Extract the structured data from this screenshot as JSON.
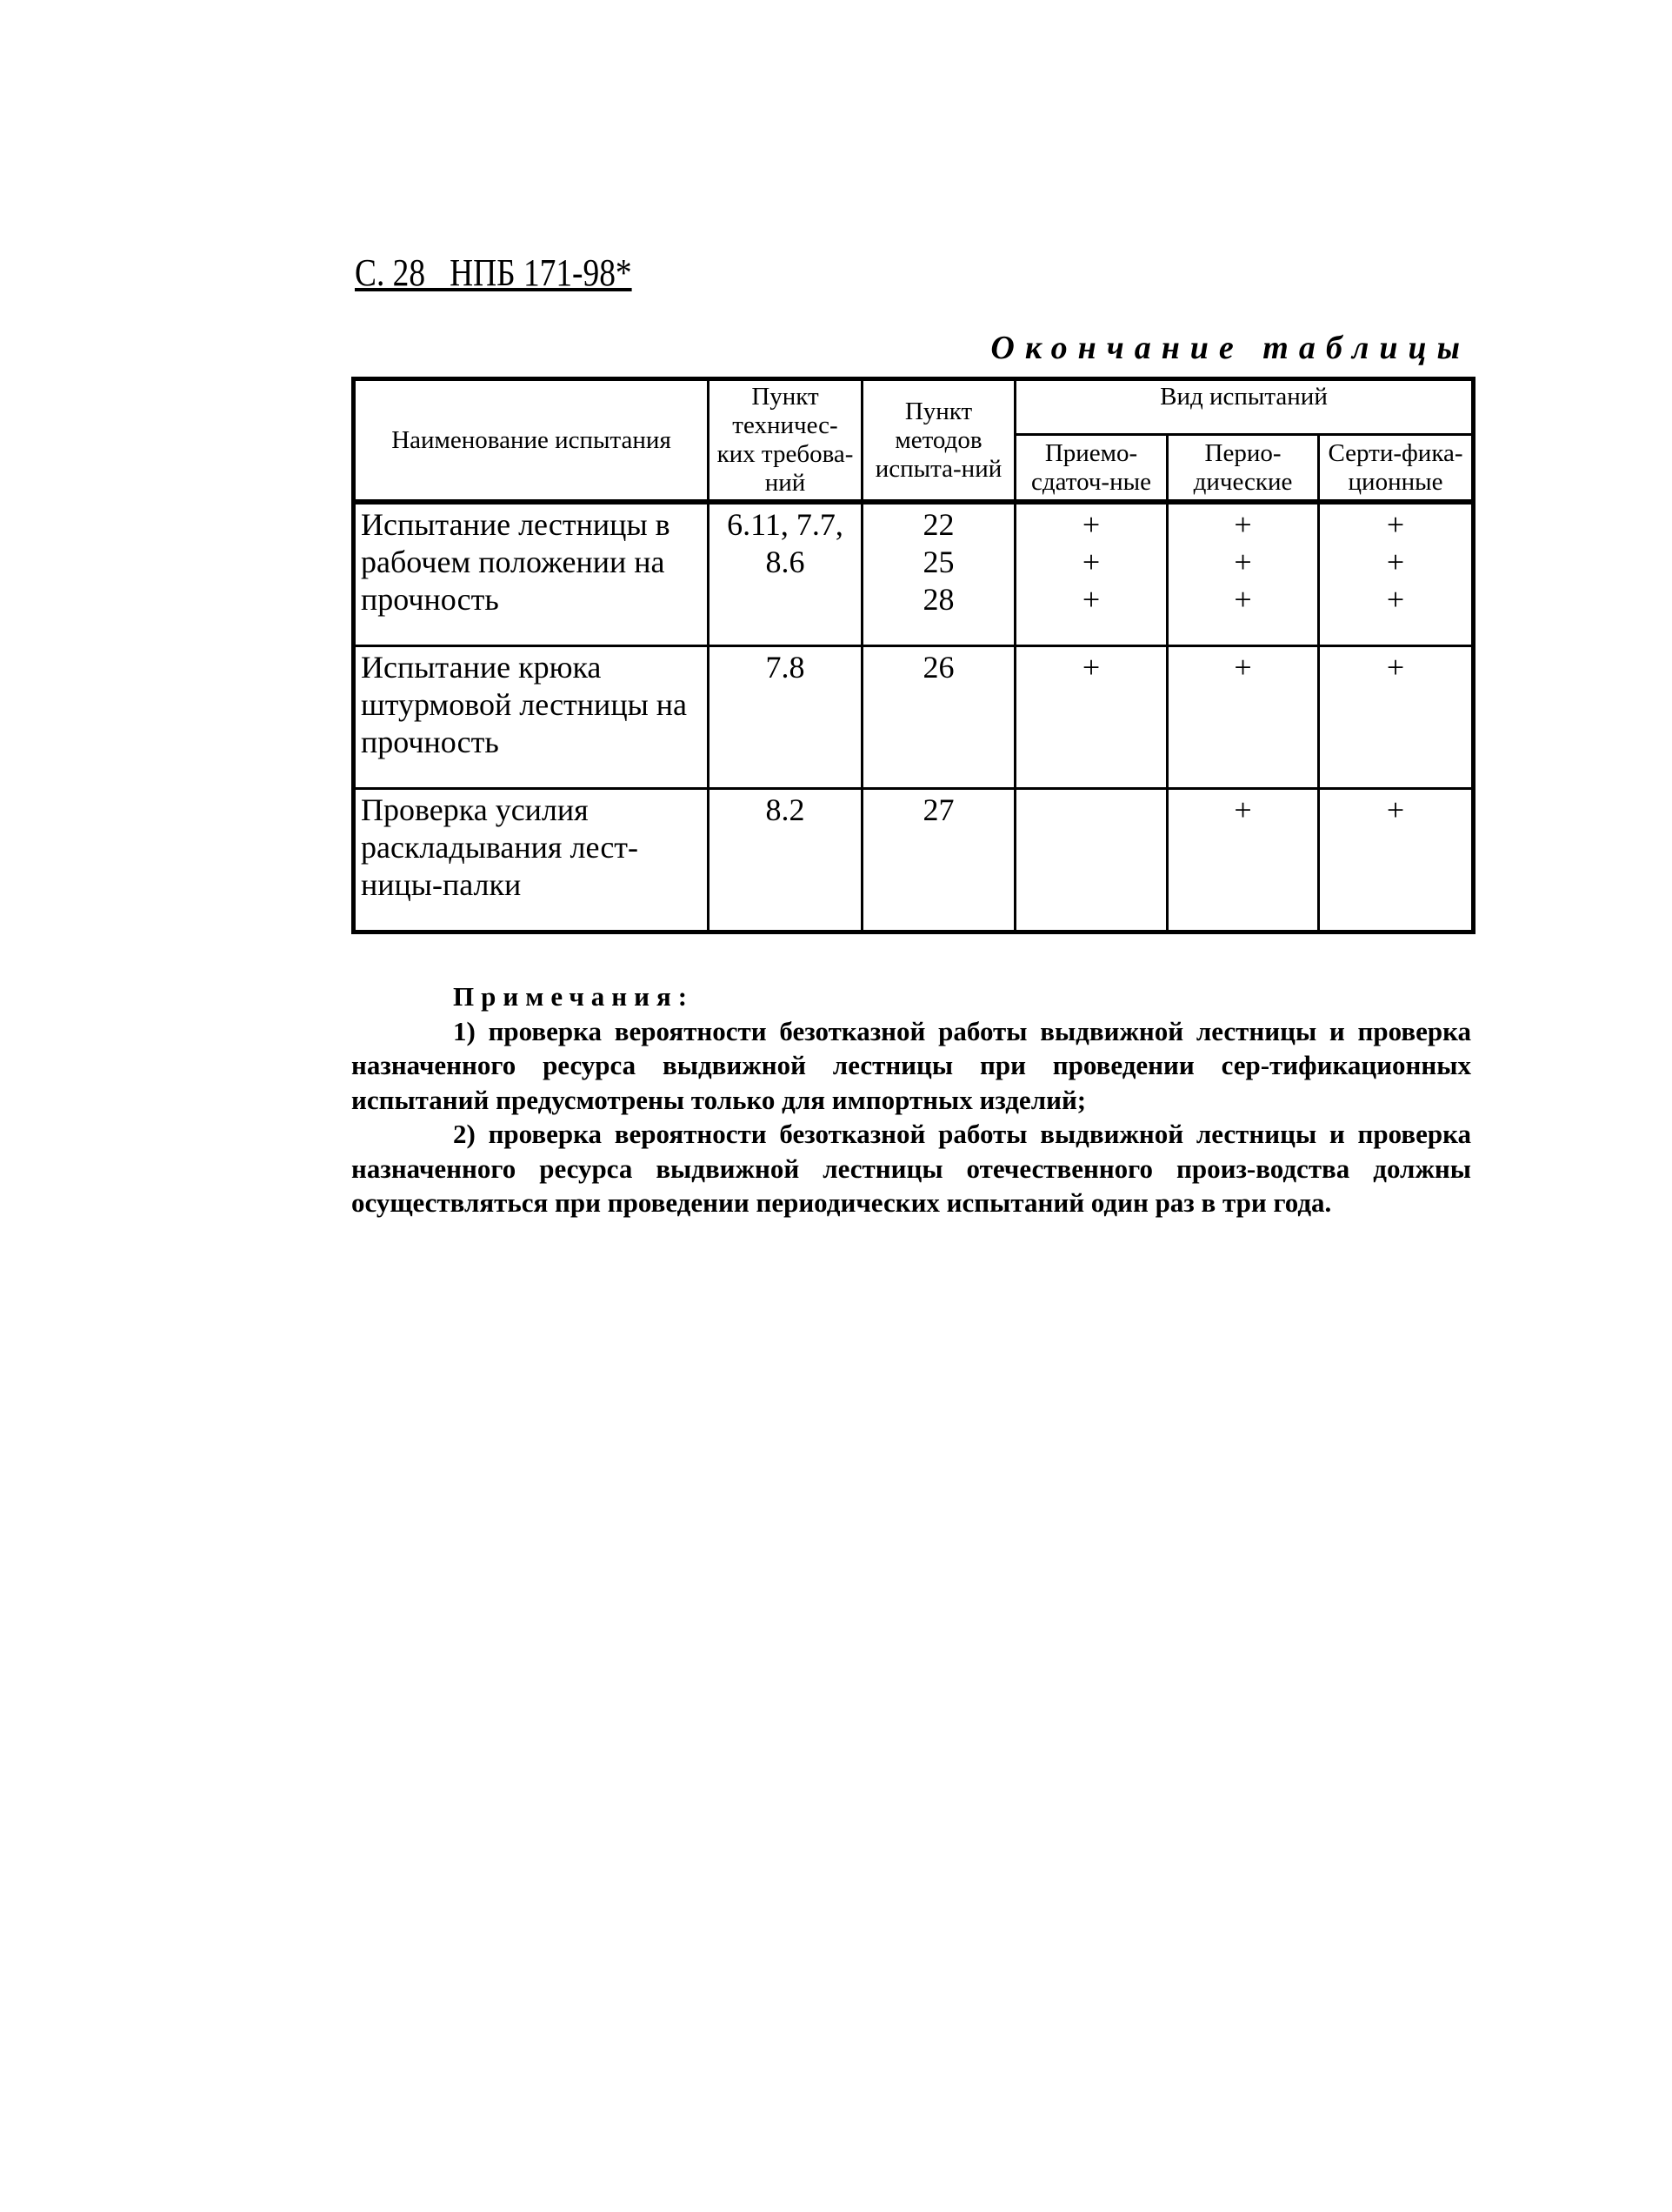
{
  "header": {
    "page_label": "С. 28   НПБ 171-98*",
    "table_continuation": "Окончание таблицы"
  },
  "table": {
    "columns": {
      "name": "Наименование испытания",
      "tech_req": "Пункт техничес-ких требова-ний",
      "test_methods": "Пункт методов испыта-ний",
      "test_type_group": "Вид испытаний",
      "acceptance": "Приемо-сдаточ-ные",
      "periodic": "Перио-дические",
      "certification": "Серти-фика-ционные"
    },
    "rows": [
      {
        "name": "Испытание лестницы в рабочем положении на прочность",
        "tech_req": "6.11, 7.7, 8.6",
        "methods": "22\n25\n28",
        "acceptance": "+\n+\n+",
        "periodic": "+\n+\n+",
        "certification": "+\n+\n+"
      },
      {
        "name": "Испытание крюка штурмовой лестницы на прочность",
        "tech_req": "7.8",
        "methods": "26",
        "acceptance": "+",
        "periodic": "+",
        "certification": "+"
      },
      {
        "name": "Проверка усилия раскладывания лест-ницы-палки",
        "tech_req": "8.2",
        "methods": "27",
        "acceptance": "",
        "periodic": "+",
        "certification": "+"
      }
    ]
  },
  "notes": {
    "heading": "Примечания:",
    "items": [
      "1) проверка вероятности безотказной работы выдвижной лестницы и проверка назначенного ресурса выдвижной лестницы при проведении сер-тификационных испытаний предусмотрены только для импортных изделий;",
      "2) проверка вероятности безотказной работы выдвижной лестницы и проверка назначенного ресурса выдвижной лестницы отечественного произ-водства должны осуществляться при проведении периодических испытаний один раз в три года."
    ]
  }
}
